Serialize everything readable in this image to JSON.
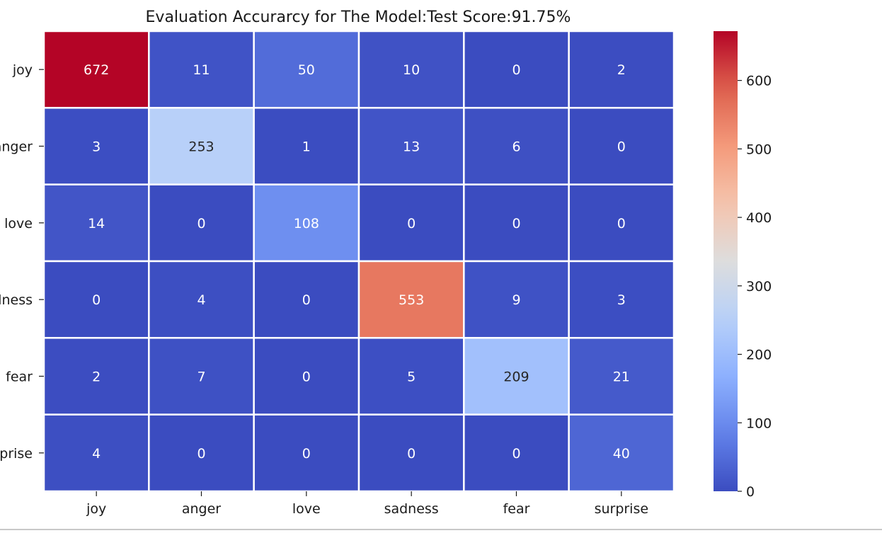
{
  "chart_data": {
    "type": "heatmap",
    "title": "Evaluation Accurarcy for The Model:Test Score:91.75%",
    "row_labels": [
      "joy",
      "anger",
      "love",
      "sadness",
      "fear",
      "surprise"
    ],
    "col_labels": [
      "joy",
      "anger",
      "love",
      "sadness",
      "fear",
      "surprise"
    ],
    "values": [
      [
        672,
        11,
        50,
        10,
        0,
        2
      ],
      [
        3,
        253,
        1,
        13,
        6,
        0
      ],
      [
        14,
        0,
        108,
        0,
        0,
        0
      ],
      [
        0,
        4,
        0,
        553,
        9,
        3
      ],
      [
        2,
        7,
        0,
        5,
        209,
        21
      ],
      [
        4,
        0,
        0,
        0,
        0,
        40
      ]
    ],
    "colormap": "coolwarm",
    "colorbar": {
      "min": 0,
      "max": 672,
      "ticks": [
        0,
        100,
        200,
        300,
        400,
        500,
        600
      ]
    },
    "annotations": true,
    "grid_line_color": "#ffffff"
  }
}
